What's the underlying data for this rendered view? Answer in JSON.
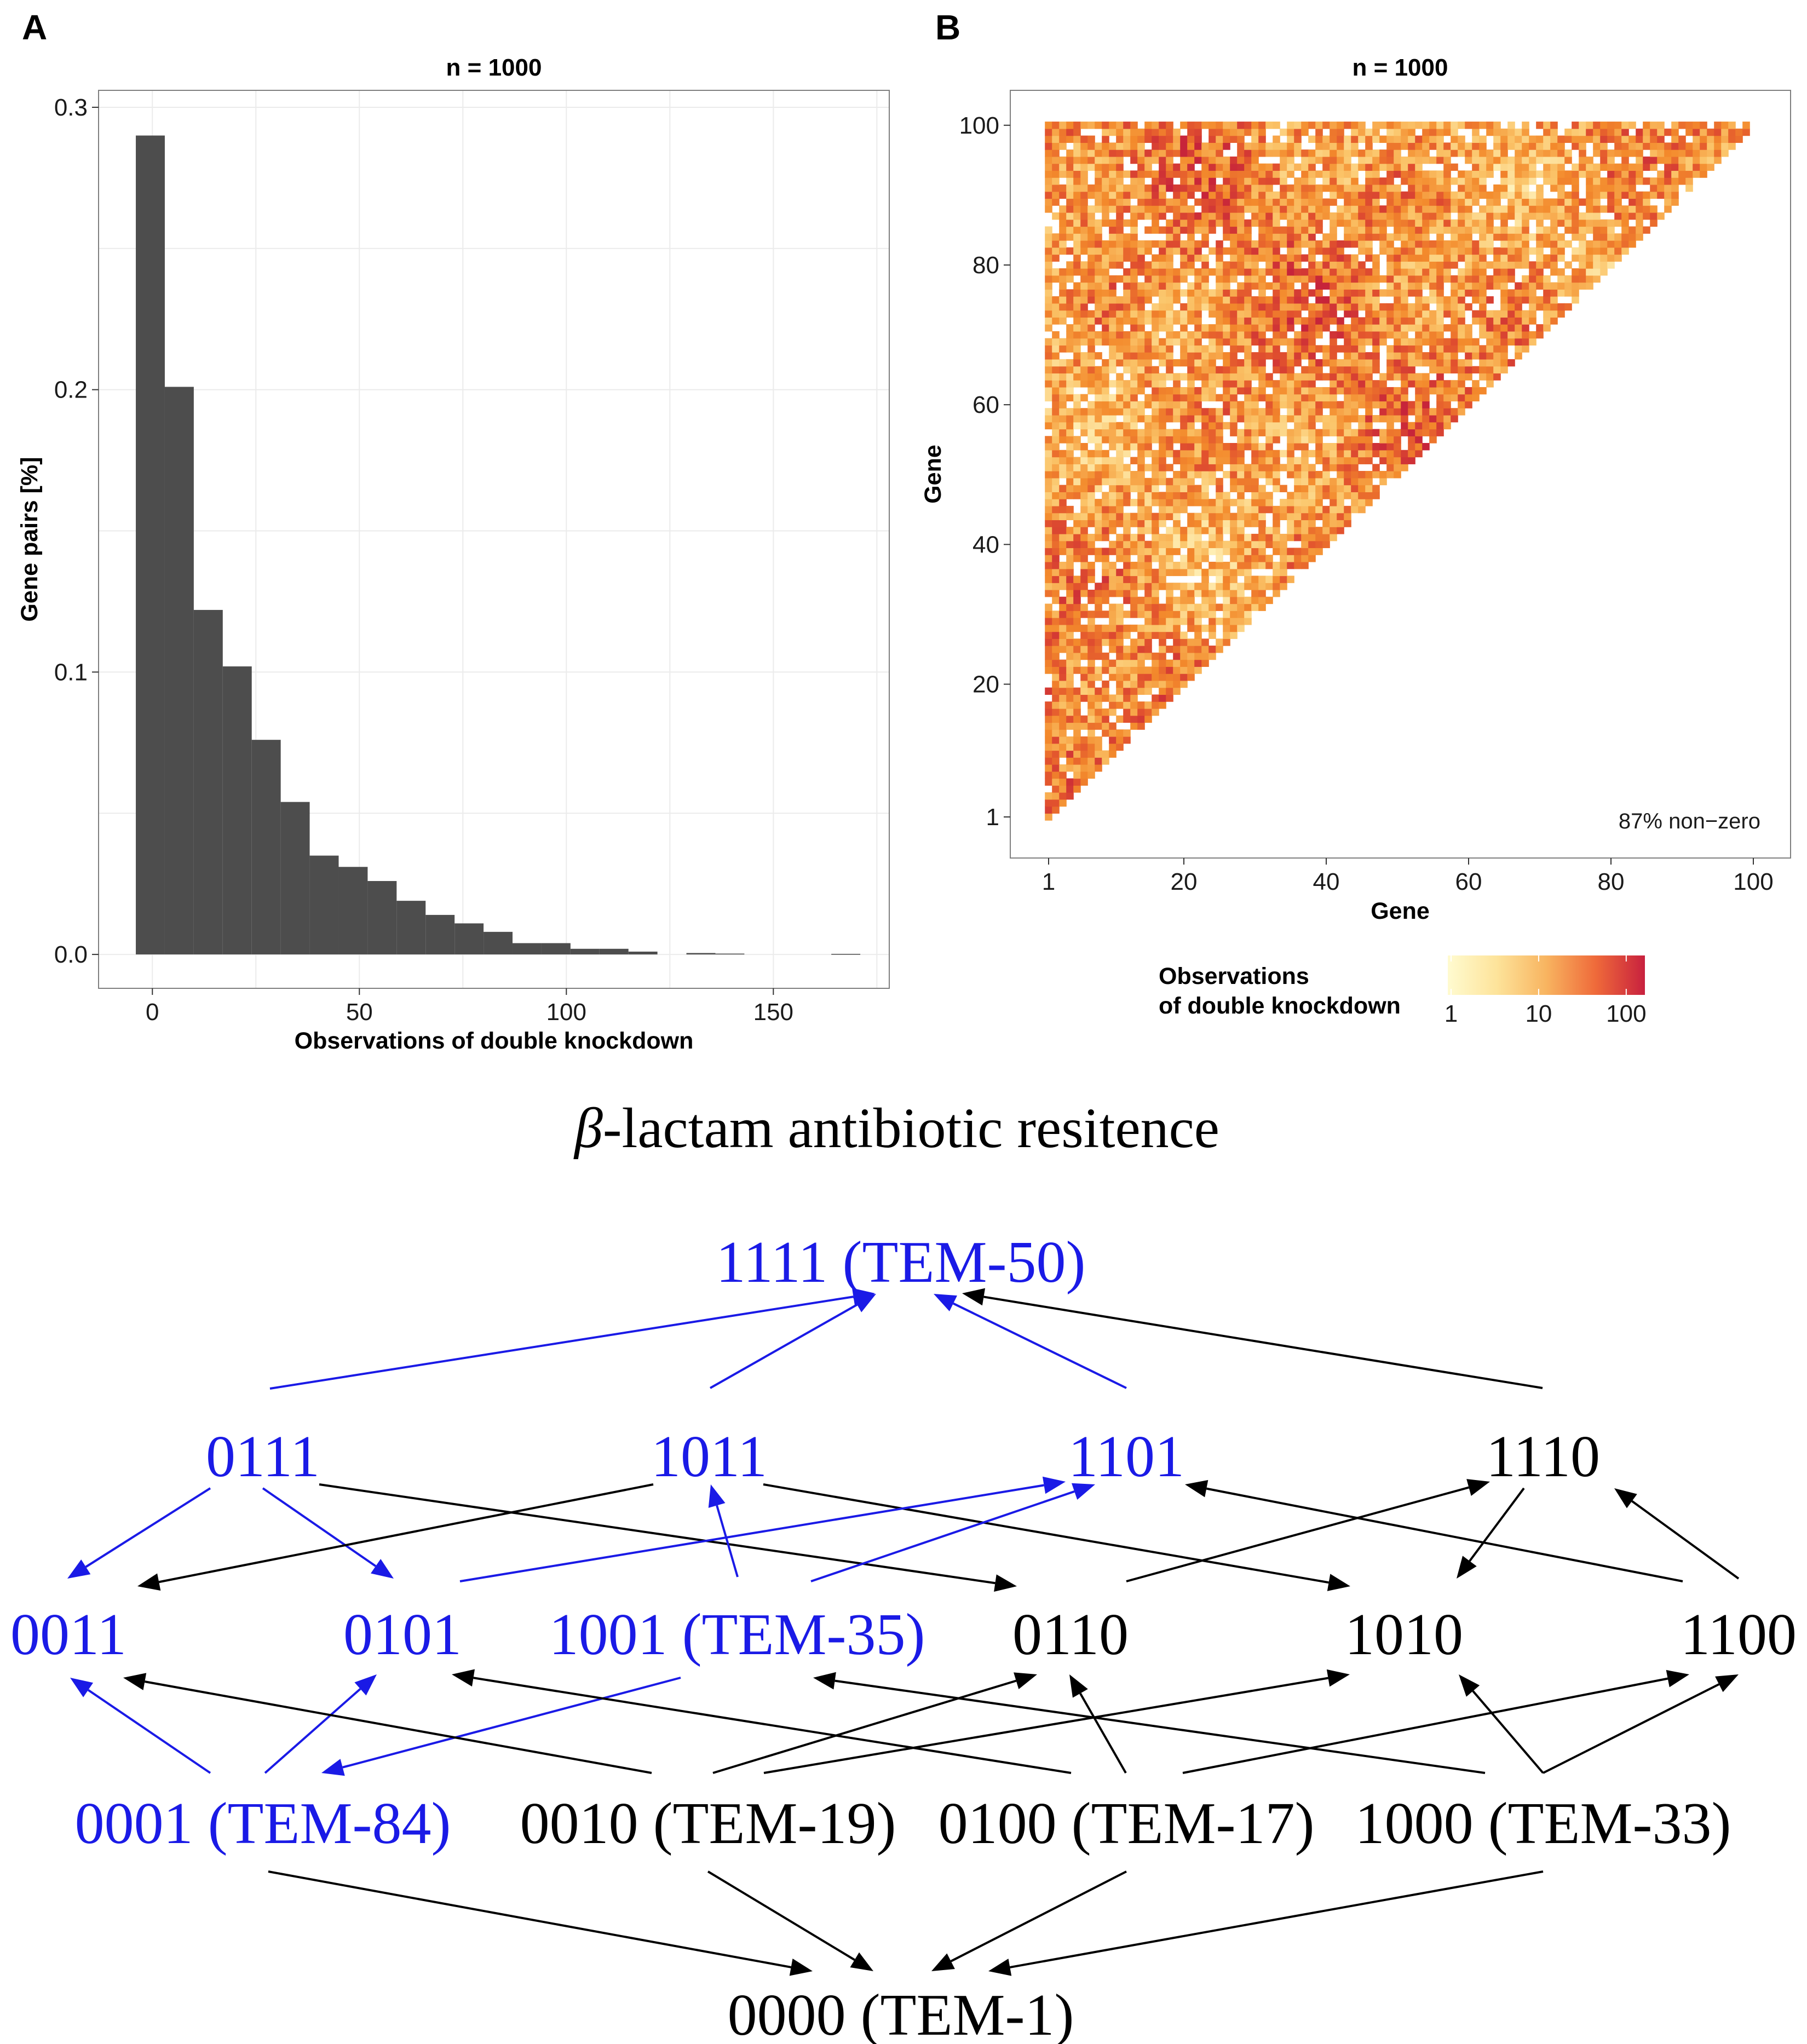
{
  "panels": {
    "a": {
      "letter": "A"
    },
    "b": {
      "letter": "B"
    }
  },
  "colors": {
    "bar": "#4d4d4d",
    "heat_low": "#fff4b0",
    "heat_mid": "#f38a2c",
    "heat_high": "#c7243a",
    "highlight": "#1a1ae6",
    "normal": "#000000"
  },
  "chart_data": [
    {
      "type": "bar",
      "title": "n = 1000",
      "xlabel": "Observations of double knockdown",
      "ylabel": "Gene pairs [%]",
      "xlim": [
        -13,
        178
      ],
      "ylim": [
        -0.012,
        0.306
      ],
      "xticks": [
        "0",
        "50",
        "100",
        "150"
      ],
      "yticks": [
        "0.0",
        "0.1",
        "0.2",
        "0.3"
      ],
      "bin_width": 7,
      "bin_starts": [
        -4,
        3,
        10,
        17,
        24,
        31,
        38,
        45,
        52,
        59,
        66,
        73,
        80,
        87,
        94,
        101,
        108,
        115,
        122,
        129,
        136,
        143,
        150,
        157,
        164
      ],
      "values": [
        0.29,
        0.201,
        0.122,
        0.102,
        0.076,
        0.054,
        0.035,
        0.031,
        0.026,
        0.019,
        0.014,
        0.011,
        0.008,
        0.004,
        0.004,
        0.002,
        0.002,
        0.001,
        0.0,
        0.0005,
        0.0003,
        0.0,
        0.0,
        0.0,
        0.0002
      ],
      "grid": true
    },
    {
      "type": "heatmap",
      "title": "n = 1000",
      "xlabel": "Gene",
      "ylabel": "Gene",
      "xticks": [
        "1",
        "20",
        "40",
        "60",
        "80",
        "100"
      ],
      "yticks": [
        "1",
        "20",
        "40",
        "60",
        "80",
        "100"
      ],
      "xlim": [
        1,
        100
      ],
      "ylim": [
        1,
        100
      ],
      "shape": "lower-left triangle (x <= y)",
      "annotation": "87% non−zero",
      "legend": {
        "title_line1": "Observations",
        "title_line2": "of double knockdown",
        "scale": "log",
        "ticks": [
          "1",
          "10",
          "100"
        ],
        "range": [
          1,
          150
        ]
      }
    }
  ],
  "graph": {
    "title": "-lactam antibiotic resitence",
    "title_symbol": "β",
    "nodes": [
      {
        "id": "1111",
        "label": "1111 (TEM-50)",
        "highlight": true
      },
      {
        "id": "0111",
        "label": "0111",
        "highlight": true
      },
      {
        "id": "1011",
        "label": "1011",
        "highlight": true
      },
      {
        "id": "1101",
        "label": "1101",
        "highlight": true
      },
      {
        "id": "1110",
        "label": "1110",
        "highlight": false
      },
      {
        "id": "0011",
        "label": "0011",
        "highlight": true
      },
      {
        "id": "0101",
        "label": "0101",
        "highlight": true
      },
      {
        "id": "1001",
        "label": "1001 (TEM-35)",
        "highlight": true
      },
      {
        "id": "0110",
        "label": "0110",
        "highlight": false
      },
      {
        "id": "1010",
        "label": "1010",
        "highlight": false
      },
      {
        "id": "1100",
        "label": "1100",
        "highlight": false
      },
      {
        "id": "0001",
        "label": "0001 (TEM-84)",
        "highlight": true
      },
      {
        "id": "0010",
        "label": "0010 (TEM-19)",
        "highlight": false
      },
      {
        "id": "0100",
        "label": "0100 (TEM-17)",
        "highlight": false
      },
      {
        "id": "1000",
        "label": "1000 (TEM-33)",
        "highlight": false
      },
      {
        "id": "0000",
        "label": "0000 (TEM-1)",
        "highlight": false
      }
    ],
    "edges": [
      {
        "from": "0111",
        "to": "1111",
        "highlight": true
      },
      {
        "from": "1011",
        "to": "1111",
        "highlight": true
      },
      {
        "from": "1101",
        "to": "1111",
        "highlight": true
      },
      {
        "from": "1110",
        "to": "1111",
        "highlight": false
      },
      {
        "from": "0111",
        "to": "0011",
        "highlight": true
      },
      {
        "from": "0111",
        "to": "0101",
        "highlight": true
      },
      {
        "from": "0111",
        "to": "0110",
        "highlight": false
      },
      {
        "from": "1011",
        "to": "0011",
        "highlight": false
      },
      {
        "from": "1011",
        "to": "1010",
        "highlight": false
      },
      {
        "from": "0101",
        "to": "1101",
        "highlight": true
      },
      {
        "from": "1001",
        "to": "1101",
        "highlight": true
      },
      {
        "from": "1001",
        "to": "1011",
        "highlight": true
      },
      {
        "from": "0110",
        "to": "1110",
        "highlight": false
      },
      {
        "from": "1110",
        "to": "1010",
        "highlight": false
      },
      {
        "from": "1100",
        "to": "1101",
        "highlight": false
      },
      {
        "from": "1100",
        "to": "1110",
        "highlight": false
      },
      {
        "from": "0001",
        "to": "0011",
        "highlight": true
      },
      {
        "from": "0001",
        "to": "0101",
        "highlight": true
      },
      {
        "from": "1001",
        "to": "0001",
        "highlight": true
      },
      {
        "from": "0010",
        "to": "0011",
        "highlight": false
      },
      {
        "from": "0010",
        "to": "0110",
        "highlight": false
      },
      {
        "from": "0010",
        "to": "1010",
        "highlight": false
      },
      {
        "from": "0100",
        "to": "0101",
        "highlight": false
      },
      {
        "from": "0100",
        "to": "0110",
        "highlight": false
      },
      {
        "from": "0100",
        "to": "1100",
        "highlight": false
      },
      {
        "from": "1000",
        "to": "1001",
        "highlight": false
      },
      {
        "from": "1000",
        "to": "1010",
        "highlight": false
      },
      {
        "from": "1000",
        "to": "1100",
        "highlight": false
      },
      {
        "from": "0001",
        "to": "0000",
        "highlight": false
      },
      {
        "from": "0010",
        "to": "0000",
        "highlight": false
      },
      {
        "from": "0100",
        "to": "0000",
        "highlight": false
      },
      {
        "from": "1000",
        "to": "0000",
        "highlight": false
      }
    ]
  }
}
